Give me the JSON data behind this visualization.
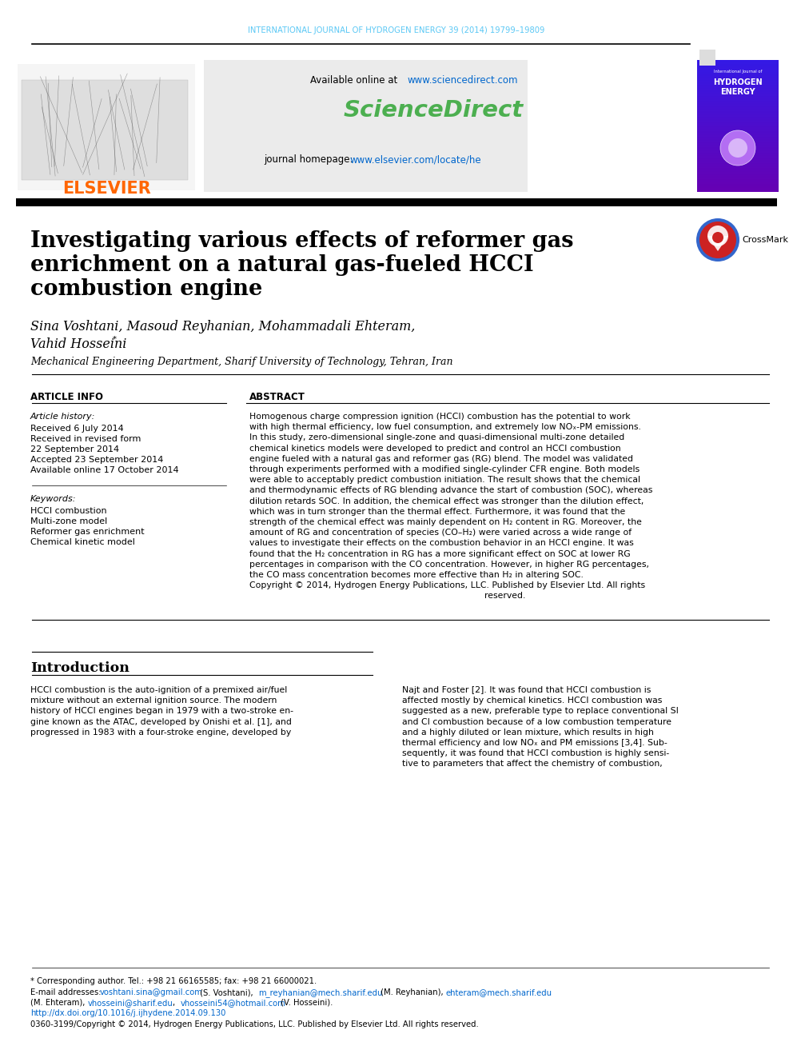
{
  "journal_header": "INTERNATIONAL JOURNAL OF HYDROGEN ENERGY 39 (2014) 19799–19809",
  "available_online": "Available online at ",
  "sciencedirect_url": "www.sciencedirect.com",
  "sciencedirect_text": "ScienceDirect",
  "journal_homepage": "journal homepage: ",
  "journal_url": "www.elsevier.com/locate/he",
  "title_line1": "Investigating various effects of reformer gas",
  "title_line2": "enrichment on a natural gas-fueled HCCI",
  "title_line3": "combustion engine",
  "authors": "Sina Voshtani, Masoud Reyhanian, Mohammadali Ehteram,",
  "authors2": "Vahid Hosseini",
  "authors_star": "*",
  "affiliation": "Mechanical Engineering Department, Sharif University of Technology, Tehran, Iran",
  "article_info_label": "ARTICLE INFO",
  "abstract_label": "ABSTRACT",
  "article_history_label": "Article history:",
  "received": "Received 6 July 2014",
  "received_revised": "Received in revised form",
  "received_revised2": "22 September 2014",
  "accepted": "Accepted 23 September 2014",
  "available_online2": "Available online 17 October 2014",
  "keywords_label": "Keywords:",
  "kw1": "HCCI combustion",
  "kw2": "Multi-zone model",
  "kw3": "Reformer gas enrichment",
  "kw4": "Chemical kinetic model",
  "intro_title": "Introduction",
  "footnote_star": "* Corresponding author. Tel.: +98 21 66165585; fax: +98 21 66000021.",
  "footnote_issn": "0360-3199/Copyright © 2014, Hydrogen Energy Publications, LLC. Published by Elsevier Ltd. All rights reserved.",
  "header_color": "#5BC8F5",
  "elsevier_color": "#FF6600",
  "sciencedirect_color": "#4CAF50",
  "url_color": "#0066CC",
  "bg_white": "#FFFFFF",
  "abstract_lines": [
    "Homogenous charge compression ignition (HCCI) combustion has the potential to work",
    "with high thermal efficiency, low fuel consumption, and extremely low NOₓ-PM emissions.",
    "In this study, zero-dimensional single-zone and quasi-dimensional multi-zone detailed",
    "chemical kinetics models were developed to predict and control an HCCI combustion",
    "engine fueled with a natural gas and reformer gas (RG) blend. The model was validated",
    "through experiments performed with a modified single-cylinder CFR engine. Both models",
    "were able to acceptably predict combustion initiation. The result shows that the chemical",
    "and thermodynamic effects of RG blending advance the start of combustion (SOC), whereas",
    "dilution retards SOC. In addition, the chemical effect was stronger than the dilution effect,",
    "which was in turn stronger than the thermal effect. Furthermore, it was found that the",
    "strength of the chemical effect was mainly dependent on H₂ content in RG. Moreover, the",
    "amount of RG and concentration of species (CO–H₂) were varied across a wide range of",
    "values to investigate their effects on the combustion behavior in an HCCI engine. It was",
    "found that the H₂ concentration in RG has a more significant effect on SOC at lower RG",
    "percentages in comparison with the CO concentration. However, in higher RG percentages,",
    "the CO mass concentration becomes more effective than H₂ in altering SOC.",
    "Copyright © 2014, Hydrogen Energy Publications, LLC. Published by Elsevier Ltd. All rights",
    "                                                                                    reserved."
  ],
  "intro_left": [
    "HCCI combustion is the auto-ignition of a premixed air/fuel",
    "mixture without an external ignition source. The modern",
    "history of HCCI engines began in 1979 with a two-stroke en-",
    "gine known as the ATAC, developed by Onishi et al. [1], and",
    "progressed in 1983 with a four-stroke engine, developed by"
  ],
  "intro_right": [
    "Najt and Foster [2]. It was found that HCCI combustion is",
    "affected mostly by chemical kinetics. HCCI combustion was",
    "suggested as a new, preferable type to replace conventional SI",
    "and CI combustion because of a low combustion temperature",
    "and a highly diluted or lean mixture, which results in high",
    "thermal efficiency and low NOₓ and PM emissions [3,4]. Sub-",
    "sequently, it was found that HCCI combustion is highly sensi-",
    "tive to parameters that affect the chemistry of combustion,"
  ]
}
